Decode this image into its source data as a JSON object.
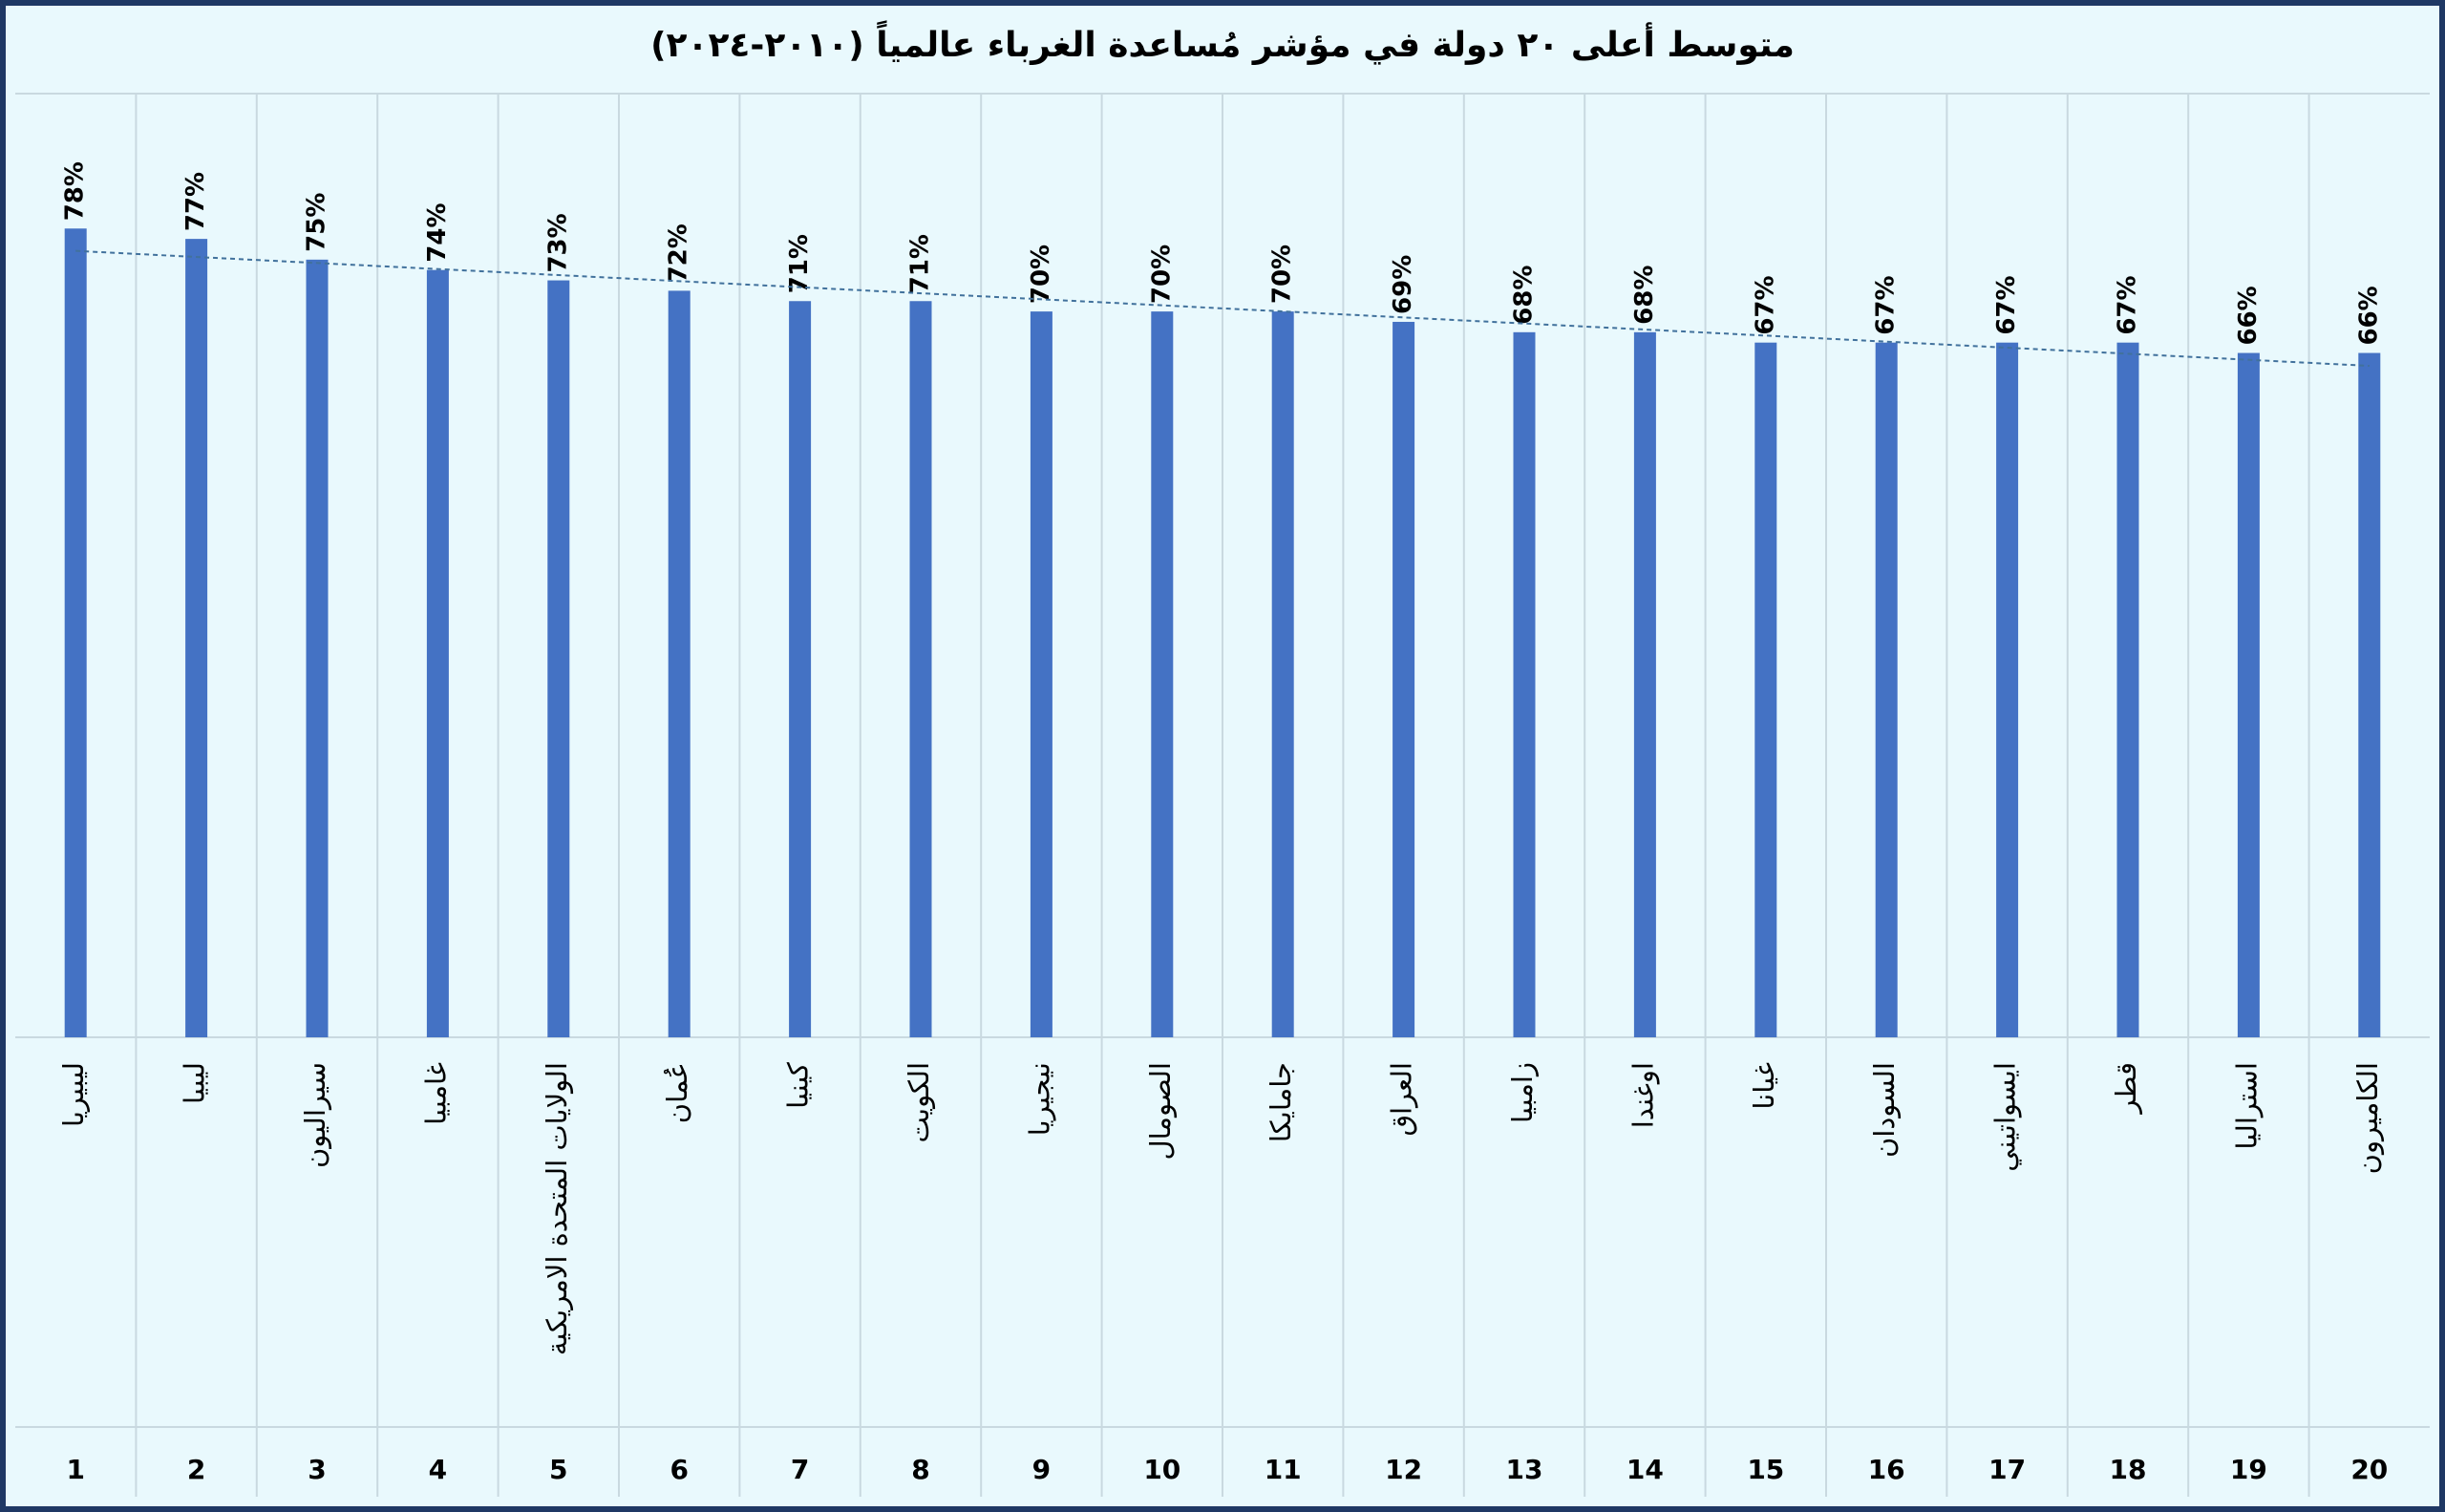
{
  "chart_data": {
    "type": "bar",
    "title": "متوسط أعلى ٢٠ دولة في مؤشر مُساعدة الغرباء عالمياً (٢٠١٠-٢٠٢٤)",
    "categories": [
      "ليبيريا",
      "ليبيا",
      "سيراليون",
      "غامبيا",
      "الولايات المتحدة الامريكية",
      "عُمان",
      "كينيا",
      "الكويت",
      "نيجيريا",
      "الصومال",
      "جامايكا",
      "العراق",
      "زامبيا",
      "اوغندا",
      "غيانا",
      "السودان",
      "ايسواتيني",
      "قطر",
      "استراليا",
      "الكاميرون"
    ],
    "ranks": [
      1,
      2,
      3,
      4,
      5,
      6,
      7,
      8,
      9,
      10,
      11,
      12,
      13,
      14,
      15,
      16,
      17,
      18,
      19,
      20
    ],
    "values": [
      78,
      77,
      75,
      74,
      73,
      72,
      71,
      71,
      70,
      70,
      70,
      69,
      68,
      68,
      67,
      67,
      67,
      67,
      66,
      66
    ],
    "value_labels": [
      "78%",
      "77%",
      "75%",
      "74%",
      "73%",
      "72%",
      "71%",
      "71%",
      "70%",
      "70%",
      "70%",
      "69%",
      "68%",
      "68%",
      "67%",
      "67%",
      "67%",
      "67%",
      "66%",
      "66%"
    ],
    "color": "#4472c4",
    "trendline": "linear",
    "trendline_color": "#41719c",
    "ylim": [
      0,
      90
    ]
  }
}
